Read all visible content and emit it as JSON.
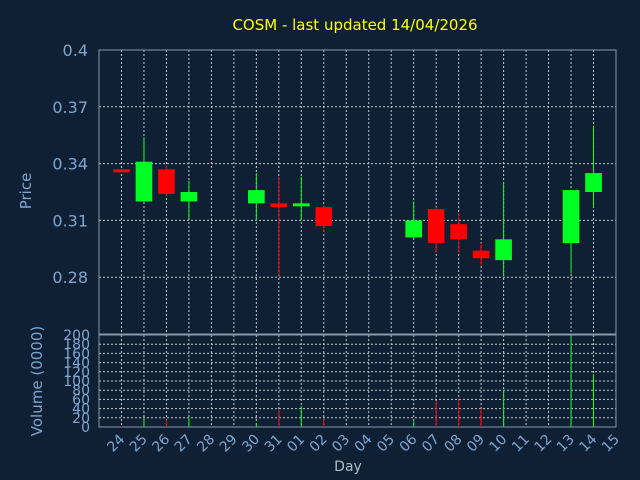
{
  "chart_data": {
    "type": "candlestick",
    "title": "COSM - last updated 14/04/2026",
    "ylabel": "Price",
    "volume_label": "Volume (0000)",
    "xlabel": "Day",
    "ylim": [
      0.25,
      0.4
    ],
    "price_ticks": [
      "0.4",
      "0.37",
      "0.34",
      "0.31",
      "0.28"
    ],
    "volume_ylim": [
      0,
      200
    ],
    "volume_ticks": [
      "200",
      "180",
      "160",
      "140",
      "120",
      "100",
      "80",
      "60",
      "40",
      "20",
      "0"
    ],
    "days": [
      "24",
      "25",
      "26",
      "27",
      "28",
      "29",
      "30",
      "31",
      "01",
      "02",
      "03",
      "04",
      "05",
      "06",
      "07",
      "08",
      "09",
      "10",
      "11",
      "12",
      "13",
      "14",
      "15"
    ],
    "candles": [
      {
        "day": "24",
        "open": 0.337,
        "high": 0.337,
        "low": 0.336,
        "close": 0.336,
        "volume": 1
      },
      {
        "day": "25",
        "open": 0.32,
        "high": 0.354,
        "low": 0.319,
        "close": 0.341,
        "volume": 20
      },
      {
        "day": "26",
        "open": 0.337,
        "high": 0.339,
        "low": 0.323,
        "close": 0.324,
        "volume": 16
      },
      {
        "day": "27",
        "open": 0.32,
        "high": 0.331,
        "low": 0.311,
        "close": 0.325,
        "volume": 20
      },
      {
        "day": "30",
        "open": 0.319,
        "high": 0.335,
        "low": 0.31,
        "close": 0.326,
        "volume": 8
      },
      {
        "day": "31",
        "open": 0.319,
        "high": 0.333,
        "low": 0.281,
        "close": 0.317,
        "volume": 38
      },
      {
        "day": "01",
        "open": 0.318,
        "high": 0.333,
        "low": 0.31,
        "close": 0.319,
        "volume": 45
      },
      {
        "day": "02",
        "open": 0.317,
        "high": 0.318,
        "low": 0.304,
        "close": 0.307,
        "volume": 18
      },
      {
        "day": "06",
        "open": 0.301,
        "high": 0.32,
        "low": 0.3,
        "close": 0.31,
        "volume": 12
      },
      {
        "day": "07",
        "open": 0.316,
        "high": 0.317,
        "low": 0.293,
        "close": 0.298,
        "volume": 56
      },
      {
        "day": "08",
        "open": 0.308,
        "high": 0.314,
        "low": 0.293,
        "close": 0.3,
        "volume": 62
      },
      {
        "day": "09",
        "open": 0.294,
        "high": 0.298,
        "low": 0.286,
        "close": 0.29,
        "volume": 40
      },
      {
        "day": "10",
        "open": 0.289,
        "high": 0.33,
        "low": 0.281,
        "close": 0.3,
        "volume": 80
      },
      {
        "day": "13",
        "open": 0.298,
        "high": 0.326,
        "low": 0.282,
        "close": 0.326,
        "volume": 200
      },
      {
        "day": "14",
        "open": 0.325,
        "high": 0.36,
        "low": 0.317,
        "close": 0.335,
        "volume": 115
      }
    ],
    "grid": true,
    "colors": {
      "background": "#0f2035",
      "up": "#00ff22",
      "down": "#ff0000",
      "title": "#ffff00",
      "labels": "#7ea6d0",
      "grid": "#c8c8c8"
    }
  }
}
